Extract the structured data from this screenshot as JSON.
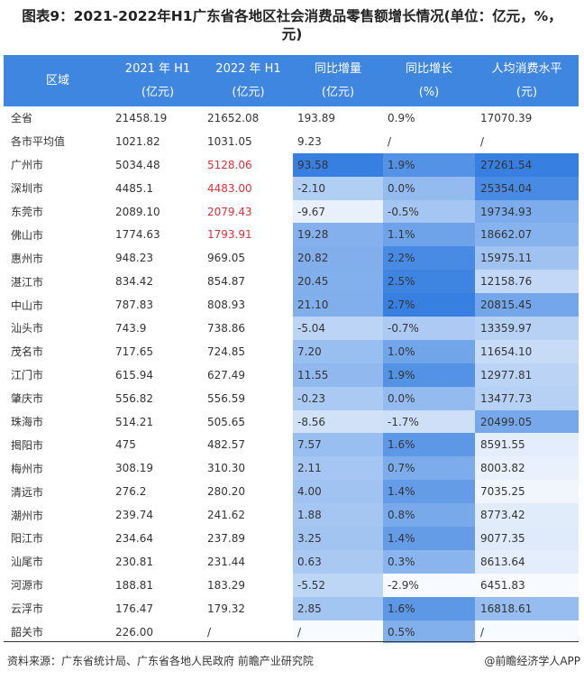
{
  "title": "图表9：2021-2022年H1广东省各地区社会消费品零售额增长情况(单位：亿元，%，元)",
  "headers": [
    {
      "line1": "区域",
      "line2": ""
    },
    {
      "line1": "2021 年 H1",
      "line2": "(亿元)"
    },
    {
      "line1": "2022 年 H1",
      "line2": "(亿元)"
    },
    {
      "line1": "同比增量",
      "line2": "(亿元)"
    },
    {
      "line1": "同比增长",
      "line2": "(%)"
    },
    {
      "line1": "人均消费水平",
      "line2": "(元)"
    }
  ],
  "colors": {
    "header_bg": "#3f86e0",
    "heat_max": "#2f7be0",
    "heat_min": "#ffffff",
    "highlight": "#e0303a"
  },
  "rows": [
    {
      "region": "全省",
      "y2021": "21458.19",
      "y2022": "21652.08",
      "inc": "193.89",
      "growth": "0.9%",
      "per_capita": "17070.39",
      "heat": false
    },
    {
      "region": "各市平均值",
      "y2021": "1021.82",
      "y2022": "1031.05",
      "inc": "9.23",
      "growth": "/",
      "per_capita": "/",
      "heat": false
    },
    {
      "region": "广州市",
      "y2021": "5034.48",
      "y2022": "5128.06",
      "inc": "93.58",
      "growth": "1.9%",
      "per_capita": "27261.54",
      "heat": true,
      "red": true
    },
    {
      "region": "深圳市",
      "y2021": "4485.1",
      "y2022": "4483.00",
      "inc": "-2.10",
      "growth": "0.0%",
      "per_capita": "25354.04",
      "heat": true,
      "red": true
    },
    {
      "region": "东莞市",
      "y2021": "2089.10",
      "y2022": "2079.43",
      "inc": "-9.67",
      "growth": "-0.5%",
      "per_capita": "19734.93",
      "heat": true,
      "red": true
    },
    {
      "region": "佛山市",
      "y2021": "1774.63",
      "y2022": "1793.91",
      "inc": "19.28",
      "growth": "1.1%",
      "per_capita": "18662.07",
      "heat": true,
      "red": true
    },
    {
      "region": "惠州市",
      "y2021": "948.23",
      "y2022": "969.05",
      "inc": "20.82",
      "growth": "2.2%",
      "per_capita": "15975.11",
      "heat": true
    },
    {
      "region": "湛江市",
      "y2021": "834.42",
      "y2022": "854.87",
      "inc": "20.45",
      "growth": "2.5%",
      "per_capita": "12158.76",
      "heat": true
    },
    {
      "region": "中山市",
      "y2021": "787.83",
      "y2022": "808.93",
      "inc": "21.10",
      "growth": "2.7%",
      "per_capita": "20815.45",
      "heat": true
    },
    {
      "region": "汕头市",
      "y2021": "743.9",
      "y2022": "738.86",
      "inc": "-5.04",
      "growth": "-0.7%",
      "per_capita": "13359.97",
      "heat": true
    },
    {
      "region": "茂名市",
      "y2021": "717.65",
      "y2022": "724.85",
      "inc": "7.20",
      "growth": "1.0%",
      "per_capita": "11654.10",
      "heat": true
    },
    {
      "region": "江门市",
      "y2021": "615.94",
      "y2022": "627.49",
      "inc": "11.55",
      "growth": "1.9%",
      "per_capita": "12977.81",
      "heat": true
    },
    {
      "region": "肇庆市",
      "y2021": "556.82",
      "y2022": "556.59",
      "inc": "-0.23",
      "growth": "0.0%",
      "per_capita": "13477.73",
      "heat": true
    },
    {
      "region": "珠海市",
      "y2021": "514.21",
      "y2022": "505.65",
      "inc": "-8.56",
      "growth": "-1.7%",
      "per_capita": "20499.05",
      "heat": true
    },
    {
      "region": "揭阳市",
      "y2021": "475",
      "y2022": "482.57",
      "inc": "7.57",
      "growth": "1.6%",
      "per_capita": "8591.55",
      "heat": true
    },
    {
      "region": "梅州市",
      "y2021": "308.19",
      "y2022": "310.30",
      "inc": "2.11",
      "growth": "0.7%",
      "per_capita": "8003.82",
      "heat": true
    },
    {
      "region": "清远市",
      "y2021": "276.2",
      "y2022": "280.20",
      "inc": "4.00",
      "growth": "1.4%",
      "per_capita": "7035.25",
      "heat": true
    },
    {
      "region": "潮州市",
      "y2021": "239.74",
      "y2022": "241.62",
      "inc": "1.88",
      "growth": "0.8%",
      "per_capita": "8773.42",
      "heat": true
    },
    {
      "region": "阳江市",
      "y2021": "234.64",
      "y2022": "237.89",
      "inc": "3.25",
      "growth": "1.4%",
      "per_capita": "9077.35",
      "heat": true
    },
    {
      "region": "汕尾市",
      "y2021": "230.81",
      "y2022": "231.44",
      "inc": "0.63",
      "growth": "0.3%",
      "per_capita": "8613.64",
      "heat": true
    },
    {
      "region": "河源市",
      "y2021": "188.81",
      "y2022": "183.29",
      "inc": "-5.52",
      "growth": "-2.9%",
      "per_capita": "6451.83",
      "heat": true
    },
    {
      "region": "云浮市",
      "y2021": "176.47",
      "y2022": "179.32",
      "inc": "2.85",
      "growth": "1.6%",
      "per_capita": "16818.61",
      "heat": true
    },
    {
      "region": "韶关市",
      "y2021": "226.00",
      "y2022": "/",
      "inc": "/",
      "growth": "0.5%",
      "per_capita": "/",
      "heat": true
    }
  ],
  "footer": {
    "source": "资料来源：广东省统计局、广东省各地人民政府 前瞻产业研究院",
    "credit": "@前瞻经济学人APP"
  }
}
